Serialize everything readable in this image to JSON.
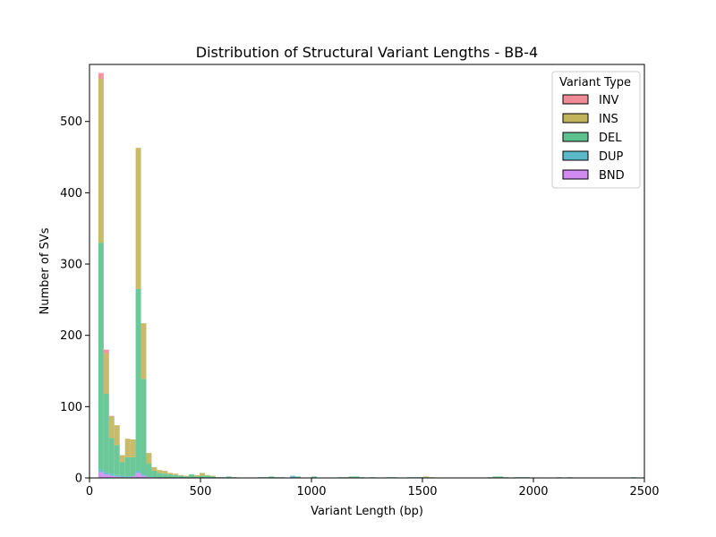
{
  "chart_data": {
    "type": "bar",
    "stacked": true,
    "title": "Distribution of Structural Variant Lengths - BB-4",
    "xlabel": "Variant Length (bp)",
    "ylabel": "Number of SVs",
    "xlim": [
      0,
      2500
    ],
    "ylim": [
      0,
      580
    ],
    "xticks": [
      0,
      500,
      1000,
      1500,
      2000,
      2500
    ],
    "yticks": [
      0,
      100,
      200,
      300,
      400,
      500
    ],
    "bin_width": 24,
    "grid": false,
    "legend": {
      "title": "Variant Type",
      "placement": "top-right"
    },
    "series": [
      {
        "name": "BND",
        "color": "#d08af0",
        "points": [
          [
            40,
            8
          ],
          [
            64,
            5
          ],
          [
            88,
            3
          ],
          [
            112,
            2
          ],
          [
            136,
            1
          ],
          [
            160,
            1
          ],
          [
            184,
            2
          ],
          [
            208,
            7
          ],
          [
            232,
            3
          ],
          [
            256,
            1
          ],
          [
            280,
            1
          ]
        ]
      },
      {
        "name": "DUP",
        "color": "#5ab8c9",
        "points": [
          [
            40,
            4
          ],
          [
            64,
            3
          ],
          [
            88,
            3
          ],
          [
            112,
            2
          ],
          [
            136,
            2
          ],
          [
            160,
            1
          ],
          [
            184,
            1
          ],
          [
            208,
            3
          ],
          [
            232,
            2
          ],
          [
            256,
            1
          ],
          [
            904,
            3
          ]
        ]
      },
      {
        "name": "DEL",
        "color": "#5bc28e",
        "points": [
          [
            40,
            318
          ],
          [
            64,
            110
          ],
          [
            88,
            50
          ],
          [
            112,
            42
          ],
          [
            136,
            19
          ],
          [
            160,
            27
          ],
          [
            184,
            26
          ],
          [
            208,
            255
          ],
          [
            232,
            134
          ],
          [
            256,
            18
          ],
          [
            280,
            9
          ],
          [
            304,
            7
          ],
          [
            328,
            6
          ],
          [
            352,
            5
          ],
          [
            376,
            4
          ],
          [
            400,
            3
          ],
          [
            424,
            2
          ],
          [
            448,
            5
          ],
          [
            472,
            2
          ],
          [
            496,
            3
          ],
          [
            520,
            3
          ],
          [
            544,
            2
          ],
          [
            568,
            1
          ],
          [
            592,
            1
          ],
          [
            616,
            2
          ],
          [
            640,
            1
          ],
          [
            760,
            1
          ],
          [
            784,
            1
          ],
          [
            808,
            2
          ],
          [
            832,
            1
          ],
          [
            856,
            1
          ],
          [
            928,
            2
          ],
          [
            1000,
            2
          ],
          [
            1120,
            1
          ],
          [
            1144,
            1
          ],
          [
            1168,
            2
          ],
          [
            1192,
            2
          ],
          [
            1216,
            1
          ],
          [
            1264,
            1
          ],
          [
            1336,
            1
          ],
          [
            1360,
            1
          ],
          [
            1432,
            1
          ],
          [
            1456,
            1
          ],
          [
            1480,
            1
          ],
          [
            1504,
            1
          ],
          [
            1792,
            1
          ],
          [
            1816,
            2
          ],
          [
            1840,
            2
          ],
          [
            1864,
            1
          ],
          [
            1912,
            1
          ],
          [
            1936,
            1
          ],
          [
            1960,
            1
          ],
          [
            2104,
            1
          ],
          [
            2152,
            1
          ],
          [
            2440,
            1
          ]
        ]
      },
      {
        "name": "INS",
        "color": "#c2b45c",
        "points": [
          [
            40,
            230
          ],
          [
            64,
            57
          ],
          [
            88,
            30
          ],
          [
            112,
            28
          ],
          [
            136,
            10
          ],
          [
            160,
            26
          ],
          [
            184,
            25
          ],
          [
            208,
            198
          ],
          [
            232,
            78
          ],
          [
            256,
            15
          ],
          [
            280,
            5
          ],
          [
            304,
            4
          ],
          [
            328,
            4
          ],
          [
            352,
            2
          ],
          [
            376,
            2
          ],
          [
            400,
            1
          ],
          [
            424,
            1
          ],
          [
            472,
            2
          ],
          [
            496,
            4
          ],
          [
            520,
            1
          ],
          [
            544,
            1
          ],
          [
            1504,
            1
          ],
          [
            1528,
            1
          ]
        ]
      },
      {
        "name": "INV",
        "color": "#f08a96",
        "points": [
          [
            40,
            8
          ],
          [
            64,
            5
          ],
          [
            88,
            1
          ]
        ]
      }
    ],
    "legend_order": [
      "INV",
      "INS",
      "DEL",
      "DUP",
      "BND"
    ]
  }
}
